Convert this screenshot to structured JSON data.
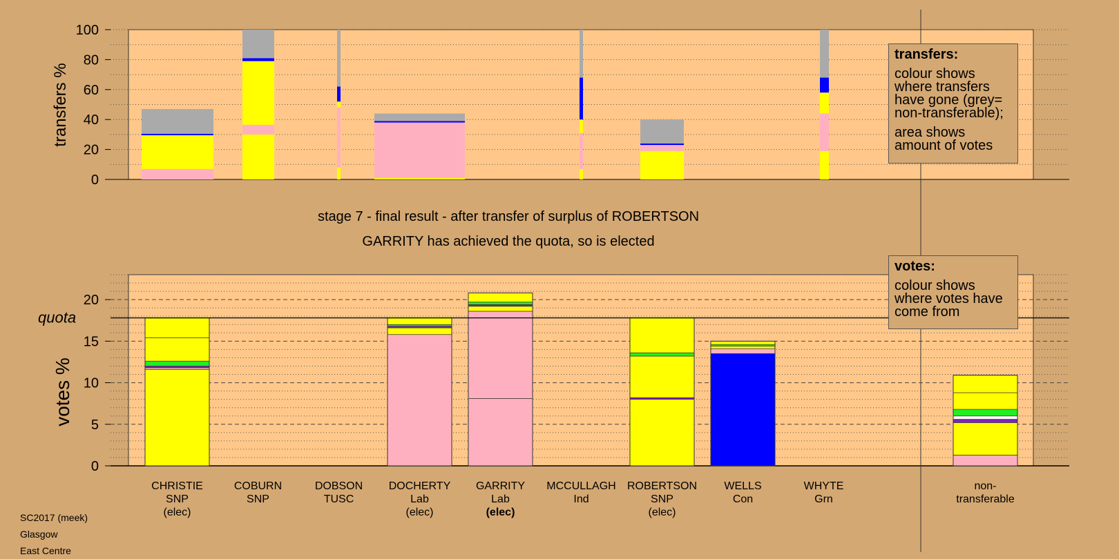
{
  "stage": {
    "line1": "stage 7 - final result - after transfer of surplus of ROBERTSON",
    "line2": "GARRITY has achieved the quota, so is elected"
  },
  "footer": {
    "line1": "SC2017 (meek)",
    "line2": "Glasgow",
    "line3": "East Centre"
  },
  "legends": {
    "transfers": {
      "title": "transfers:",
      "para1": "colour shows where transfers have gone (grey= non-transferable);",
      "para2": "area shows amount of votes"
    },
    "votes": {
      "title": "votes:",
      "para1": "colour shows where votes have come from"
    }
  },
  "colors": {
    "SNP": "#ffff00",
    "Lab": "#ffb0c0",
    "Con": "#0000ff",
    "Grn": "#22ee22",
    "TUSC": "#8020c0",
    "Ind": "#ffffff",
    "nontransferable": "#aaaaaa",
    "plot_bg": "#ffc88a",
    "page_bg": "#d4a873"
  },
  "chart_data": [
    {
      "type": "bar",
      "name": "transfers",
      "ylabel": "transfers %",
      "ylim": [
        0,
        100
      ],
      "yticks": [
        0,
        20,
        40,
        60,
        80,
        100
      ],
      "grid": true,
      "note": "bar width shows amount of votes transferred",
      "bars": [
        {
          "candidate": "CHRISTIE",
          "segments": [
            {
              "party": "Lab",
              "from": 0,
              "to": 7
            },
            {
              "party": "SNP",
              "from": 7,
              "to": 29.5
            },
            {
              "party": "Con",
              "from": 29.5,
              "to": 30.5
            },
            {
              "party": "nontransferable",
              "from": 30.5,
              "to": 47
            }
          ]
        },
        {
          "candidate": "COBURN",
          "segments": [
            {
              "party": "SNP",
              "from": 0,
              "to": 30
            },
            {
              "party": "Lab",
              "from": 30,
              "to": 36.5
            },
            {
              "party": "SNP",
              "from": 36.5,
              "to": 79
            },
            {
              "party": "Con",
              "from": 79,
              "to": 81
            },
            {
              "party": "nontransferable",
              "from": 81,
              "to": 100
            }
          ]
        },
        {
          "candidate": "DOBSON",
          "segments": [
            {
              "party": "SNP",
              "from": 0,
              "to": 8
            },
            {
              "party": "Lab",
              "from": 8,
              "to": 48
            },
            {
              "party": "SNP",
              "from": 48,
              "to": 52
            },
            {
              "party": "Con",
              "from": 52,
              "to": 62
            },
            {
              "party": "nontransferable",
              "from": 62,
              "to": 100
            }
          ]
        },
        {
          "candidate": "DOCHERTY",
          "segments": [
            {
              "party": "SNP",
              "from": 0,
              "to": 1
            },
            {
              "party": "Lab",
              "from": 1,
              "to": 38
            },
            {
              "party": "Con",
              "from": 38,
              "to": 39
            },
            {
              "party": "nontransferable",
              "from": 39,
              "to": 44
            }
          ]
        },
        {
          "candidate": "MCCULLAGH",
          "segments": [
            {
              "party": "SNP",
              "from": 0,
              "to": 7
            },
            {
              "party": "Lab",
              "from": 7,
              "to": 31
            },
            {
              "party": "SNP",
              "from": 31,
              "to": 40
            },
            {
              "party": "Con",
              "from": 40,
              "to": 68
            },
            {
              "party": "nontransferable",
              "from": 68,
              "to": 100
            }
          ]
        },
        {
          "candidate": "ROBERTSON",
          "segments": [
            {
              "party": "SNP",
              "from": 0,
              "to": 19
            },
            {
              "party": "Lab",
              "from": 19,
              "to": 23
            },
            {
              "party": "Con",
              "from": 23,
              "to": 24
            },
            {
              "party": "nontransferable",
              "from": 24,
              "to": 40
            }
          ]
        },
        {
          "candidate": "WHYTE",
          "segments": [
            {
              "party": "SNP",
              "from": 0,
              "to": 19
            },
            {
              "party": "Lab",
              "from": 19,
              "to": 44
            },
            {
              "party": "SNP",
              "from": 44,
              "to": 58
            },
            {
              "party": "Con",
              "from": 58,
              "to": 68
            },
            {
              "party": "nontransferable",
              "from": 68,
              "to": 100
            }
          ]
        }
      ]
    },
    {
      "type": "bar",
      "name": "votes",
      "ylabel": "votes %",
      "ylim": [
        0,
        23
      ],
      "yticks": [
        0,
        5,
        10,
        15,
        20
      ],
      "quota": 17.8,
      "quota_label": "quota",
      "grid": true,
      "categories": [
        {
          "name": "CHRISTIE",
          "party": "SNP",
          "status": "(elec)"
        },
        {
          "name": "COBURN",
          "party": "SNP",
          "status": ""
        },
        {
          "name": "DOBSON",
          "party": "TUSC",
          "status": ""
        },
        {
          "name": "DOCHERTY",
          "party": "Lab",
          "status": "(elec)"
        },
        {
          "name": "GARRITY",
          "party": "Lab",
          "status": "(elec)",
          "bold_status": true
        },
        {
          "name": "MCCULLAGH",
          "party": "Ind",
          "status": ""
        },
        {
          "name": "ROBERTSON",
          "party": "SNP",
          "status": "(elec)"
        },
        {
          "name": "WELLS",
          "party": "Con",
          "status": ""
        },
        {
          "name": "WHYTE",
          "party": "Grn",
          "status": ""
        },
        {
          "name": "non-",
          "party": "transferable",
          "status": ""
        }
      ],
      "values": [
        17.8,
        0,
        0,
        17.8,
        20.8,
        0,
        17.8,
        15.0,
        0,
        10.9
      ],
      "stacks": [
        [
          [
            "SNP",
            0,
            11.6
          ],
          [
            "Lab",
            11.6,
            11.8
          ],
          [
            "TUSC",
            11.8,
            12.0
          ],
          [
            "Grn",
            12.0,
            12.6
          ],
          [
            "SNP",
            12.6,
            15.4
          ],
          [
            "SNP",
            15.4,
            17.8
          ]
        ],
        [],
        [],
        [
          [
            "Lab",
            0,
            15.8
          ],
          [
            "SNP",
            15.8,
            16.6
          ],
          [
            "TUSC",
            16.6,
            16.8
          ],
          [
            "Grn",
            16.8,
            17.0
          ],
          [
            "SNP",
            17.0,
            17.8
          ]
        ],
        [
          [
            "Lab",
            0,
            8.1
          ],
          [
            "Lab",
            8.1,
            18.6
          ],
          [
            "SNP",
            18.6,
            19.2
          ],
          [
            "TUSC",
            19.2,
            19.4
          ],
          [
            "Grn",
            19.4,
            19.7
          ],
          [
            "SNP",
            19.7,
            20.8
          ]
        ],
        [],
        [
          [
            "SNP",
            0,
            8.0
          ],
          [
            "TUSC",
            8.0,
            8.2
          ],
          [
            "SNP",
            8.2,
            13.2
          ],
          [
            "Grn",
            13.2,
            13.6
          ],
          [
            "SNP",
            13.6,
            17.8
          ]
        ],
        [
          [
            "Con",
            0,
            13.5
          ],
          [
            "Lab",
            13.5,
            14.1
          ],
          [
            "SNP",
            14.1,
            14.4
          ],
          [
            "Grn",
            14.4,
            14.6
          ],
          [
            "SNP",
            14.6,
            15.0
          ]
        ],
        [],
        [
          [
            "Lab",
            0,
            1.3
          ],
          [
            "SNP",
            1.3,
            5.2
          ],
          [
            "TUSC",
            5.2,
            5.6
          ],
          [
            "Ind",
            5.6,
            6.0
          ],
          [
            "Grn",
            6.0,
            6.8
          ],
          [
            "SNP",
            6.8,
            8.8
          ],
          [
            "SNP",
            8.8,
            10.9
          ]
        ]
      ]
    }
  ]
}
